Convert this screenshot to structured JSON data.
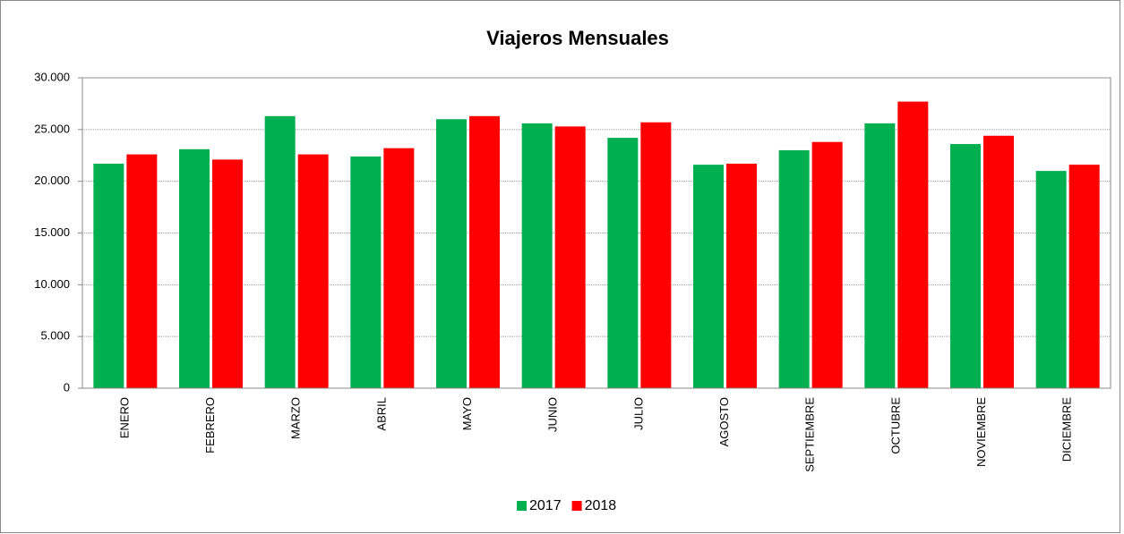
{
  "chart_data": {
    "type": "bar",
    "title": "Viajeros Mensuales",
    "categories": [
      "ENERO",
      "FEBRERO",
      "MARZO",
      "ABRIL",
      "MAYO",
      "JUNIO",
      "JULIO",
      "AGOSTO",
      "SEPTIEMBRE",
      "OCTUBRE",
      "NOVIEMBRE",
      "DICIEMBRE"
    ],
    "series": [
      {
        "name": "2017",
        "color": "#00b050",
        "values": [
          21700,
          23100,
          26300,
          22400,
          26000,
          25600,
          24200,
          21600,
          23000,
          25600,
          23600,
          21000
        ]
      },
      {
        "name": "2018",
        "color": "#ff0000",
        "values": [
          22600,
          22100,
          22600,
          23200,
          26300,
          25300,
          25700,
          21700,
          23800,
          27700,
          24400,
          21600
        ]
      }
    ],
    "ylim": [
      0,
      30000
    ],
    "yticks": [
      0,
      {
        "value": 5000,
        "label": "5.000"
      },
      {
        "value": 10000,
        "label": "10.000"
      },
      {
        "value": 15000,
        "label": "15.000"
      },
      {
        "value": 20000,
        "label": "20.000"
      },
      {
        "value": 25000,
        "label": "25.000"
      },
      {
        "value": 30000,
        "label": "30.000"
      }
    ],
    "grid": true,
    "legend": "bottom"
  }
}
